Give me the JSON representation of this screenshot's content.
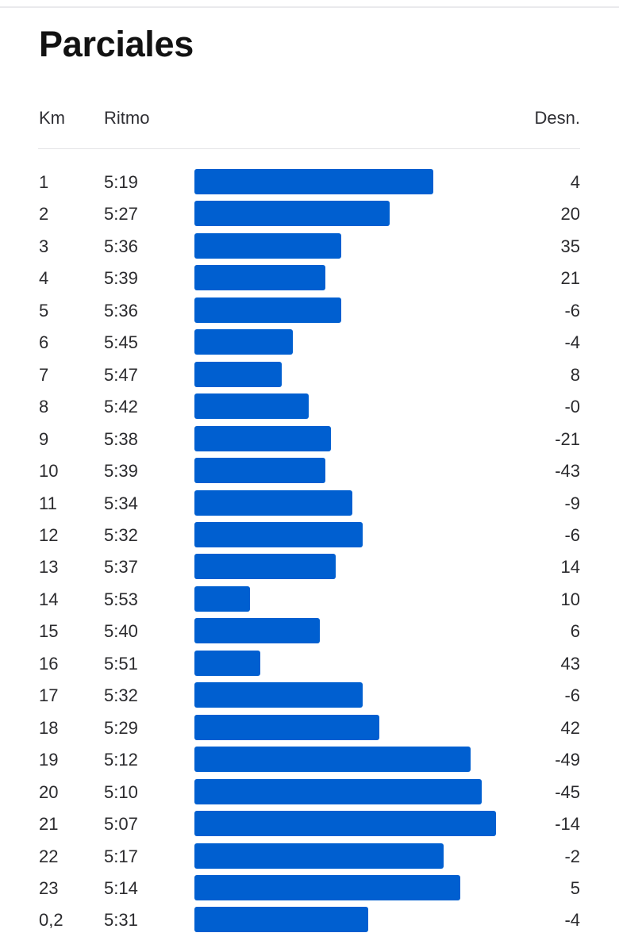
{
  "title": "Parciales",
  "headers": {
    "km": "Km",
    "pace": "Ritmo",
    "elevation": "Desn."
  },
  "colors": {
    "bar": "#005fd0"
  },
  "splits": [
    {
      "km": "1",
      "pace": "5:19",
      "elevation": "4"
    },
    {
      "km": "2",
      "pace": "5:27",
      "elevation": "20"
    },
    {
      "km": "3",
      "pace": "5:36",
      "elevation": "35"
    },
    {
      "km": "4",
      "pace": "5:39",
      "elevation": "21"
    },
    {
      "km": "5",
      "pace": "5:36",
      "elevation": "-6"
    },
    {
      "km": "6",
      "pace": "5:45",
      "elevation": "-4"
    },
    {
      "km": "7",
      "pace": "5:47",
      "elevation": "8"
    },
    {
      "km": "8",
      "pace": "5:42",
      "elevation": "-0"
    },
    {
      "km": "9",
      "pace": "5:38",
      "elevation": "-21"
    },
    {
      "km": "10",
      "pace": "5:39",
      "elevation": "-43"
    },
    {
      "km": "11",
      "pace": "5:34",
      "elevation": "-9"
    },
    {
      "km": "12",
      "pace": "5:32",
      "elevation": "-6"
    },
    {
      "km": "13",
      "pace": "5:37",
      "elevation": "14"
    },
    {
      "km": "14",
      "pace": "5:53",
      "elevation": "10"
    },
    {
      "km": "15",
      "pace": "5:40",
      "elevation": "6"
    },
    {
      "km": "16",
      "pace": "5:51",
      "elevation": "43"
    },
    {
      "km": "17",
      "pace": "5:32",
      "elevation": "-6"
    },
    {
      "km": "18",
      "pace": "5:29",
      "elevation": "42"
    },
    {
      "km": "19",
      "pace": "5:12",
      "elevation": "-49"
    },
    {
      "km": "20",
      "pace": "5:10",
      "elevation": "-45"
    },
    {
      "km": "21",
      "pace": "5:07",
      "elevation": "-14"
    },
    {
      "km": "22",
      "pace": "5:17",
      "elevation": "-2"
    },
    {
      "km": "23",
      "pace": "5:14",
      "elevation": "5"
    },
    {
      "km": "0,2",
      "pace": "5:31",
      "elevation": "-4"
    }
  ]
}
